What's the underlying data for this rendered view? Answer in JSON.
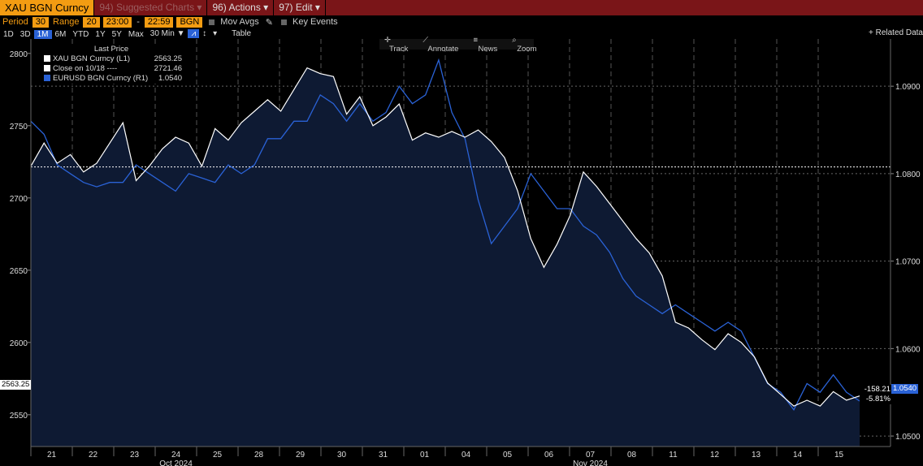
{
  "header": {
    "ticker": "XAU BGN Curncy",
    "suggested": "Suggested Charts",
    "suggested_num": "94",
    "actions_num": "96",
    "actions": "Actions",
    "edit_num": "97",
    "edit": "Edit"
  },
  "params": {
    "period_label": "Period",
    "period_value": "30",
    "range_label": "Range",
    "range_value": "20",
    "time_from": "23:00",
    "time_to": "22:59",
    "source": "BGN",
    "mov_avgs": "Mov Avgs",
    "key_events": "Key Events"
  },
  "periods": [
    "1D",
    "3D",
    "1M",
    "6M",
    "YTD",
    "1Y",
    "5Y",
    "Max"
  ],
  "selected_period": "1M",
  "interval": "30 Min ▼",
  "table_label": "Table",
  "related": "+ Related Data",
  "tools": [
    "Track",
    "Annotate",
    "News",
    "Zoom"
  ],
  "legend": {
    "header": "Last Price",
    "items": [
      {
        "label": "XAU BGN Curncy  (L1)",
        "value": "2563.25",
        "color": "#ffffff"
      },
      {
        "label": "Close on 10/18  ----",
        "value": "2721.46",
        "color": "#ffffff"
      },
      {
        "label": "EURUSD BGN Curncy  (R1)",
        "value": "1.0540",
        "color": "#2a62d6"
      }
    ]
  },
  "tags": {
    "left_last": "2563.25",
    "change": "-158.21",
    "change_pct": "-5.81%",
    "right_last": "1.0540"
  },
  "chart_data": {
    "type": "line",
    "x_ticks": [
      "21",
      "22",
      "23",
      "24",
      "25",
      "28",
      "29",
      "30",
      "31",
      "01",
      "04",
      "05",
      "06",
      "07",
      "08",
      "11",
      "12",
      "13",
      "14",
      "15"
    ],
    "month_labels": [
      {
        "after_tick": "24",
        "label": "Oct 2024"
      },
      {
        "after_tick": "07",
        "label": "Nov 2024"
      }
    ],
    "y_left": {
      "ticks": [
        2550,
        2600,
        2650,
        2700,
        2750,
        2800
      ],
      "range": [
        2528,
        2810
      ]
    },
    "y_right": {
      "ticks": [
        1.05,
        1.06,
        1.07,
        1.08,
        1.09
      ],
      "range": [
        1.0488,
        1.0954
      ]
    },
    "reference_line": {
      "label": "Close on 10/18",
      "value": 2721.46
    },
    "series": [
      {
        "name": "XAU BGN Curncy",
        "axis": "left",
        "color": "#ffffff",
        "values": [
          2722,
          2738,
          2724,
          2730,
          2718,
          2724,
          2738,
          2752,
          2712,
          2722,
          2734,
          2742,
          2738,
          2722,
          2748,
          2740,
          2752,
          2760,
          2768,
          2760,
          2775,
          2790,
          2786,
          2784,
          2758,
          2770,
          2750,
          2756,
          2765,
          2740,
          2745,
          2742,
          2746,
          2742,
          2747,
          2739,
          2728,
          2705,
          2672,
          2652,
          2668,
          2688,
          2718,
          2708,
          2696,
          2684,
          2672,
          2662,
          2646,
          2614,
          2610,
          2602,
          2595,
          2606,
          2600,
          2590,
          2572,
          2564,
          2556,
          2560,
          2556,
          2566,
          2560,
          2563
        ]
      },
      {
        "name": "EURUSD BGN Curncy",
        "axis": "right",
        "color": "#2a62d6",
        "values": [
          1.086,
          1.0845,
          1.081,
          1.08,
          1.079,
          1.0785,
          1.079,
          1.079,
          1.081,
          1.08,
          1.079,
          1.078,
          1.08,
          1.0795,
          1.079,
          1.081,
          1.08,
          1.081,
          1.084,
          1.084,
          1.086,
          1.086,
          1.089,
          1.088,
          1.086,
          1.088,
          1.086,
          1.087,
          1.09,
          1.088,
          1.089,
          1.093,
          1.087,
          1.084,
          1.077,
          1.072,
          1.074,
          1.076,
          1.08,
          1.078,
          1.076,
          1.076,
          1.074,
          1.073,
          1.071,
          1.068,
          1.066,
          1.065,
          1.064,
          1.065,
          1.064,
          1.063,
          1.062,
          1.063,
          1.062,
          1.059,
          1.056,
          1.055,
          1.053,
          1.056,
          1.055,
          1.057,
          1.055,
          1.054
        ]
      }
    ]
  }
}
